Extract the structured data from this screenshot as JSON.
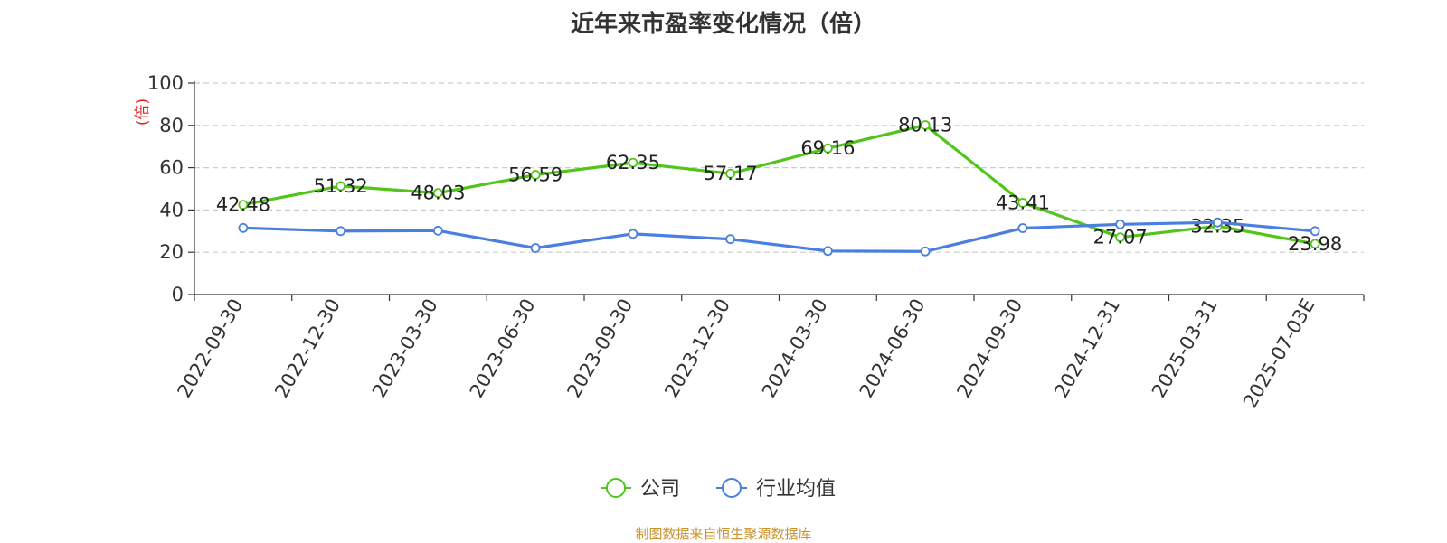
{
  "chart_data": {
    "type": "line",
    "title": "近年来市盈率变化情况（倍）",
    "xlabel": "",
    "ylabel": "(倍)",
    "ylim": [
      0,
      100
    ],
    "yticks": [
      0,
      20,
      40,
      60,
      80,
      100
    ],
    "grid": true,
    "legend": "bottom-center",
    "categories": [
      "2022-09-30",
      "2022-12-30",
      "2023-03-30",
      "2023-06-30",
      "2023-09-30",
      "2023-12-30",
      "2024-03-30",
      "2024-06-30",
      "2024-09-30",
      "2024-12-31",
      "2025-03-31",
      "2025-07-03E"
    ],
    "series": [
      {
        "name": "公司",
        "color": "#52c41a",
        "values": [
          42.48,
          51.32,
          48.03,
          56.59,
          62.35,
          57.17,
          69.16,
          80.13,
          43.41,
          27.07,
          32.35,
          23.98
        ],
        "labels": [
          "42.48",
          "51.32",
          "48.03",
          "56.59",
          "62.35",
          "57.17",
          "69.16",
          "80.13",
          "43.41",
          "27.07",
          "32.35",
          "23.98"
        ]
      },
      {
        "name": "行业均值",
        "color": "#4a7fe0",
        "values": [
          31.5,
          30.0,
          30.2,
          22.0,
          28.7,
          26.2,
          20.6,
          20.4,
          31.4,
          33.2,
          34.1,
          30.0
        ]
      }
    ]
  },
  "footer": {
    "source": "制图数据来自恒生聚源数据库"
  }
}
